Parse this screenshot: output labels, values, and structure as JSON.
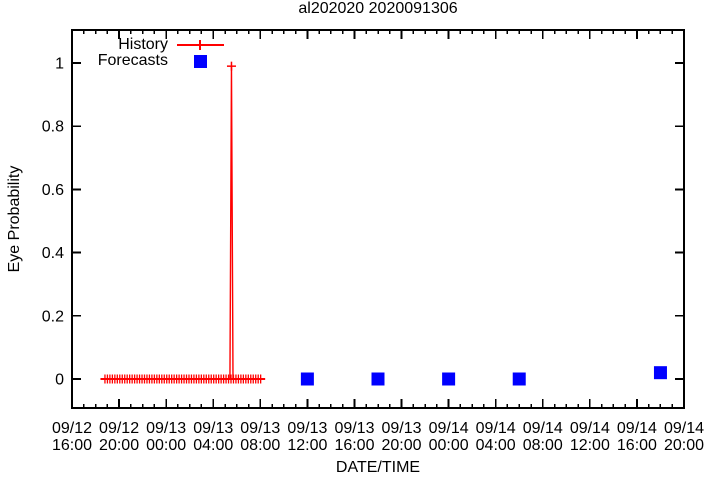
{
  "title": "al202020 2020091306",
  "legend": {
    "history_label": "History",
    "forecasts_label": "Forecasts"
  },
  "colors": {
    "history": "#ff0000",
    "forecasts": "#0000ff",
    "axis": "#000000",
    "background": "#ffffff"
  },
  "chart_data": {
    "type": "line",
    "title": "al202020 2020091306",
    "xlabel": "DATE/TIME",
    "ylabel": "Eye Probability",
    "legend_position": "top-left-inside",
    "grid": false,
    "x_axis": {
      "start_label": "09/12 16:00",
      "end_label": "09/14 20:00",
      "span_hours": 52,
      "major_tick_hours": 4,
      "minor_tick_hours": 1,
      "tick_labels": [
        [
          "09/12",
          "16:00"
        ],
        [
          "09/12",
          "20:00"
        ],
        [
          "09/13",
          "00:00"
        ],
        [
          "09/13",
          "04:00"
        ],
        [
          "09/13",
          "08:00"
        ],
        [
          "09/13",
          "12:00"
        ],
        [
          "09/13",
          "16:00"
        ],
        [
          "09/13",
          "20:00"
        ],
        [
          "09/14",
          "00:00"
        ],
        [
          "09/14",
          "04:00"
        ],
        [
          "09/14",
          "08:00"
        ],
        [
          "09/14",
          "12:00"
        ],
        [
          "09/14",
          "16:00"
        ],
        [
          "09/14",
          "20:00"
        ]
      ]
    },
    "y_axis": {
      "ticks": [
        0,
        0.2,
        0.4,
        0.6,
        0.8,
        1
      ],
      "tick_labels": [
        "0",
        "0.2",
        "0.4",
        "0.6",
        "0.8",
        "1"
      ],
      "ylim": [
        -0.092,
        1.104
      ]
    },
    "series": [
      {
        "name": "History",
        "type": "line+cross-markers",
        "color": "#ff0000",
        "baseline": {
          "start_hour": 2.8,
          "end_hour": 16.03,
          "marker_step_hours": 0.21,
          "value": 0,
          "start_time": "09/12 ~18:50",
          "end_time": "09/13 08:00"
        },
        "spike": {
          "hour": 13.55,
          "time": "09/13 ~05:30",
          "peak_value": 0.99,
          "rise_fall_half_width_hours": 0.13
        }
      },
      {
        "name": "Forecasts",
        "type": "filled-square",
        "color": "#0000ff",
        "points": [
          {
            "time": "09/13 12:00",
            "hour": 20,
            "value": 0.0
          },
          {
            "time": "09/13 18:00",
            "hour": 26,
            "value": 0.0
          },
          {
            "time": "09/14 00:00",
            "hour": 32,
            "value": 0.0
          },
          {
            "time": "09/14 06:00",
            "hour": 38,
            "value": 0.0
          },
          {
            "time": "09/14 18:00",
            "hour": 50,
            "value": 0.02
          }
        ]
      }
    ]
  }
}
